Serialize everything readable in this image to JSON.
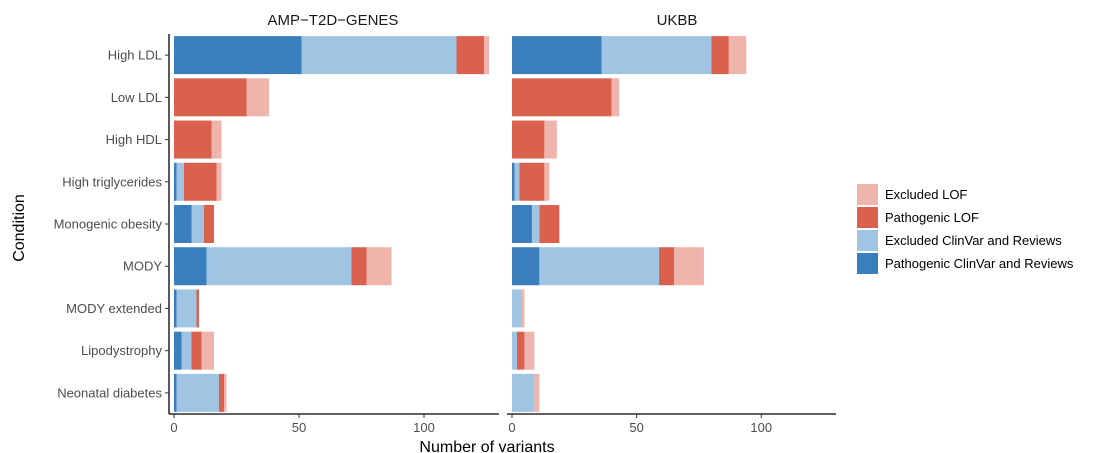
{
  "chart_data": {
    "type": "bar",
    "orientation": "horizontal",
    "stacked": true,
    "xlabel": "Number of variants",
    "ylabel": "Condition",
    "xlim": [
      -2,
      130
    ],
    "xticks": [
      "0",
      "50",
      "100"
    ],
    "grid": false,
    "legend_position": "right",
    "categories": [
      "High LDL",
      "Low LDL",
      "High HDL",
      "High triglycerides",
      "Monogenic obesity",
      "MODY",
      "MODY extended",
      "Lipodystrophy",
      "Neonatal diabetes"
    ],
    "series_order": [
      "Pathogenic ClinVar and Reviews",
      "Excluded ClinVar and Reviews",
      "Pathogenic LOF",
      "Excluded LOF"
    ],
    "legend_order": [
      "Excluded LOF",
      "Pathogenic LOF",
      "Excluded ClinVar and Reviews",
      "Pathogenic ClinVar and Reviews"
    ],
    "colors": {
      "Excluded LOF": "#efb4ab",
      "Pathogenic LOF": "#db614f",
      "Excluded ClinVar and Reviews": "#a0c5e3",
      "Pathogenic ClinVar and Reviews": "#3a7ebb"
    },
    "panels": [
      {
        "title": "AMP−T2D−GENES",
        "values": {
          "Pathogenic ClinVar and Reviews": [
            51,
            0,
            0,
            1,
            7,
            13,
            1,
            3,
            1
          ],
          "Excluded ClinVar and Reviews": [
            62,
            0,
            0,
            3,
            5,
            58,
            8,
            4,
            17
          ],
          "Pathogenic LOF": [
            11,
            29,
            15,
            13,
            4,
            6,
            1,
            4,
            2
          ],
          "Excluded LOF": [
            2,
            9,
            4,
            2,
            0,
            10,
            0,
            5,
            1
          ]
        }
      },
      {
        "title": "UKBB",
        "values": {
          "Pathogenic ClinVar and Reviews": [
            36,
            0,
            0,
            1,
            8,
            11,
            0,
            0,
            0
          ],
          "Excluded ClinVar and Reviews": [
            44,
            0,
            0,
            2,
            3,
            48,
            4,
            2,
            9
          ],
          "Pathogenic LOF": [
            7,
            40,
            13,
            10,
            8,
            6,
            0,
            3,
            0
          ],
          "Excluded LOF": [
            7,
            3,
            5,
            2,
            0,
            12,
            1,
            4,
            2
          ]
        }
      }
    ]
  }
}
